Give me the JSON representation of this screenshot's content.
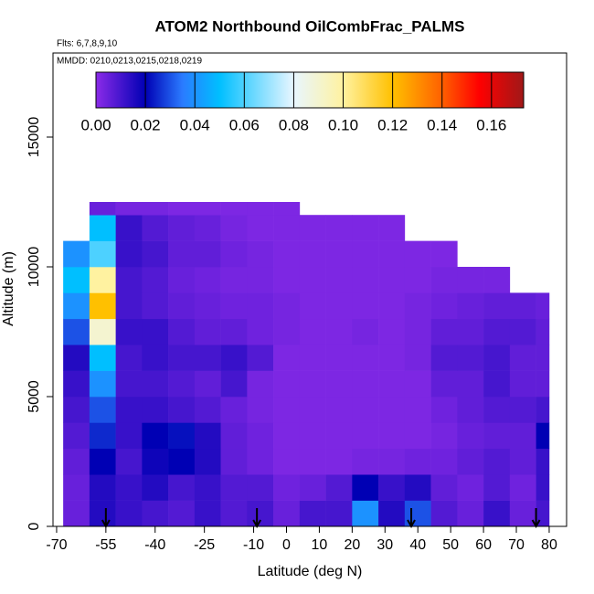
{
  "chart_data": {
    "type": "heatmap",
    "title": "ATOM2 Northbound OilCombFrac_PALMS",
    "flights": "Flts: 6,7,8,9,10",
    "dates": "MMDD: 0210,0213,0215,0218,0219",
    "xlabel": "Latitude (deg N)",
    "ylabel": "Altitude (m)",
    "xlim": [
      -71.1,
      85.3
    ],
    "ylim": [
      0,
      18240
    ],
    "xticks": [
      -70,
      -55,
      -40,
      -25,
      -10,
      0,
      10,
      20,
      30,
      40,
      50,
      60,
      70,
      80
    ],
    "yticks": [
      0,
      5000,
      10000,
      15000
    ],
    "x_edges": [
      -68,
      -60,
      -52,
      -44,
      -36,
      -28,
      -20,
      -12,
      -4,
      4,
      12,
      20,
      28,
      36,
      44,
      52,
      60,
      68,
      76,
      80
    ],
    "y_edges": [
      0,
      1000,
      2000,
      3000,
      4000,
      5000,
      6000,
      7000,
      8000,
      9000,
      10000,
      11000,
      12000,
      12500
    ],
    "z": [
      [
        0.005,
        0.015,
        0.012,
        0.01,
        0.008,
        0.012,
        0.008,
        0.01,
        0.005,
        0.01,
        0.01,
        0.04,
        0.015,
        0.03,
        0.008,
        0.005,
        0.012,
        0.005,
        0.01
      ],
      [
        0.005,
        0.015,
        0.012,
        0.015,
        0.01,
        0.012,
        0.008,
        0.008,
        0.004,
        0.005,
        0.008,
        0.02,
        0.012,
        0.015,
        0.006,
        0.004,
        0.008,
        0.004,
        0.012
      ],
      [
        0.006,
        0.02,
        0.01,
        0.018,
        0.02,
        0.015,
        0.006,
        0.004,
        0.002,
        0.002,
        0.002,
        0.003,
        0.003,
        0.004,
        0.004,
        0.006,
        0.008,
        0.006,
        0.012
      ],
      [
        0.008,
        0.025,
        0.012,
        0.02,
        0.022,
        0.015,
        0.006,
        0.004,
        0.002,
        0.002,
        0.002,
        0.002,
        0.002,
        0.002,
        0.003,
        0.005,
        0.006,
        0.006,
        0.02
      ],
      [
        0.01,
        0.03,
        0.012,
        0.012,
        0.01,
        0.008,
        0.005,
        0.003,
        0.002,
        0.002,
        0.002,
        0.002,
        0.002,
        0.002,
        0.004,
        0.006,
        0.008,
        0.008,
        0.01
      ],
      [
        0.012,
        0.04,
        0.01,
        0.01,
        0.008,
        0.006,
        0.01,
        0.003,
        0.002,
        0.002,
        0.002,
        0.002,
        0.002,
        0.002,
        0.006,
        0.006,
        0.01,
        0.006,
        0.006
      ],
      [
        0.015,
        0.05,
        0.01,
        0.012,
        0.01,
        0.01,
        0.012,
        0.008,
        0.002,
        0.002,
        0.002,
        0.002,
        0.002,
        0.003,
        0.008,
        0.008,
        0.01,
        0.006,
        0.006
      ],
      [
        0.03,
        0.09,
        0.012,
        0.012,
        0.008,
        0.006,
        0.006,
        0.004,
        0.003,
        0.002,
        0.002,
        0.003,
        0.002,
        0.003,
        0.006,
        0.006,
        0.008,
        0.008,
        0.006
      ],
      [
        0.04,
        0.12,
        0.01,
        0.008,
        0.006,
        0.005,
        0.004,
        0.004,
        0.003,
        0.002,
        0.002,
        0.002,
        0.002,
        0.003,
        0.004,
        0.005,
        0.006,
        0.006,
        0.005
      ],
      [
        0.05,
        0.1,
        0.01,
        0.008,
        0.005,
        0.004,
        0.003,
        0.003,
        0.002,
        0.002,
        0.002,
        0.002,
        0.002,
        0.002,
        0.003,
        0.003,
        0.003,
        null,
        null
      ],
      [
        0.04,
        0.06,
        0.012,
        0.01,
        0.006,
        0.006,
        0.004,
        0.003,
        0.002,
        0.002,
        0.002,
        0.002,
        0.002,
        0.002,
        0.002,
        null,
        null,
        null,
        null
      ],
      [
        null,
        0.05,
        0.012,
        0.008,
        0.006,
        0.005,
        0.003,
        0.002,
        0.002,
        0.002,
        0.002,
        0.002,
        0.002,
        null,
        null,
        null,
        null,
        null,
        null
      ],
      [
        null,
        0.005,
        0.003,
        0.003,
        0.002,
        0.002,
        0.002,
        0.002,
        0.002,
        null,
        null,
        null,
        null,
        null,
        null,
        null,
        null,
        null,
        null
      ]
    ],
    "arrows": [
      -55,
      -9,
      38,
      76
    ],
    "colorbar": {
      "lim": [
        0,
        0.173
      ],
      "stops": [
        0,
        0.02,
        0.035,
        0.05,
        0.08,
        0.1,
        0.12,
        0.14,
        0.155,
        0.173
      ],
      "colors": [
        "#8b2be8",
        "#0000b4",
        "#2a7bff",
        "#00bfff",
        "#e8f6ff",
        "#fff2a0",
        "#ffc000",
        "#ff6000",
        "#ff0000",
        "#a01818"
      ],
      "ticks": [
        {
          "value": 0,
          "label": "0.00"
        },
        {
          "value": 0.02,
          "label": "0.02"
        },
        {
          "value": 0.04,
          "label": "0.04"
        },
        {
          "value": 0.06,
          "label": "0.06"
        },
        {
          "value": 0.08,
          "label": "0.08"
        },
        {
          "value": 0.1,
          "label": "0.10"
        },
        {
          "value": 0.12,
          "label": "0.12"
        },
        {
          "value": 0.14,
          "label": "0.14"
        },
        {
          "value": 0.16,
          "label": "0.16"
        }
      ]
    }
  }
}
